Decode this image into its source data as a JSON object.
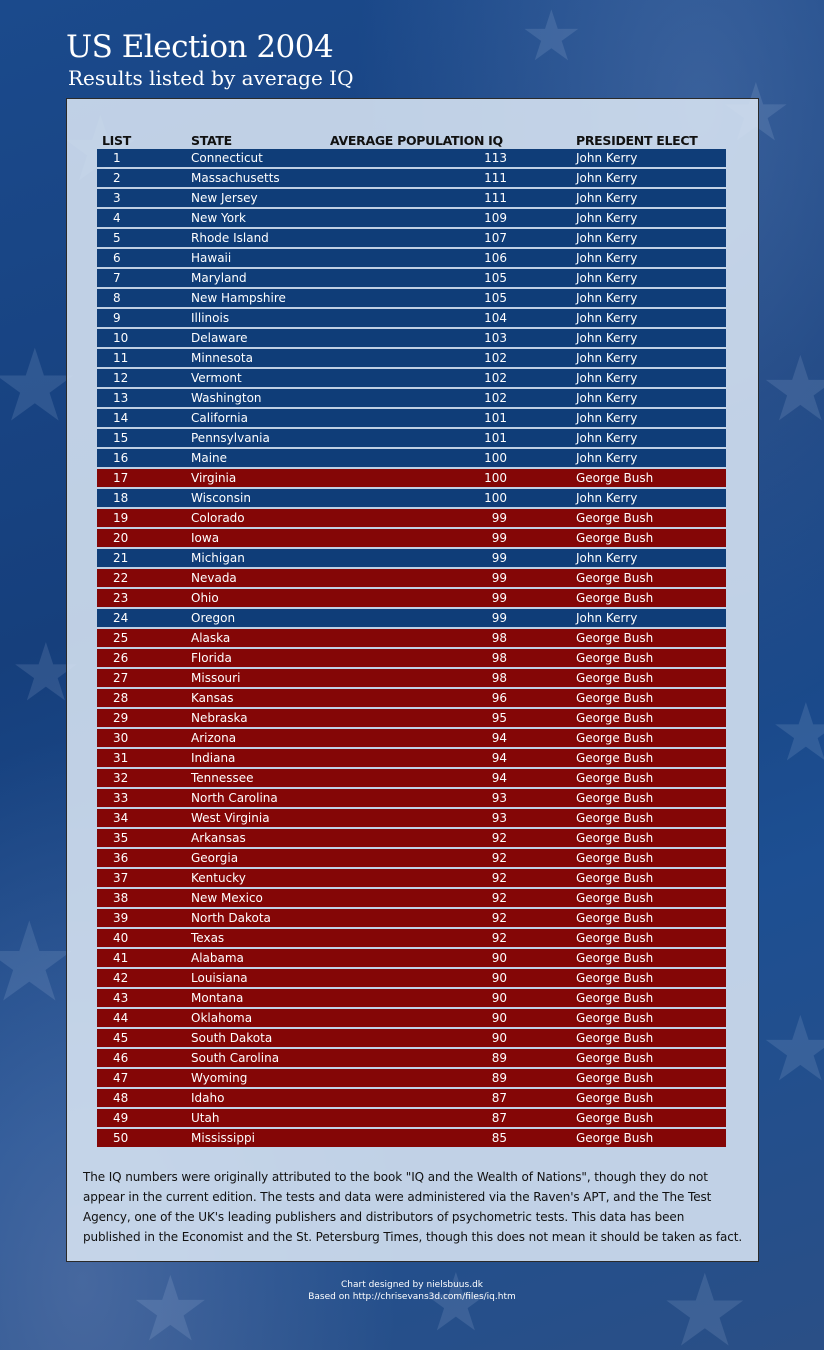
{
  "header": {
    "title": "US Election 2004",
    "subtitle": "Results listed by average IQ"
  },
  "colors": {
    "kerry": "#0f3d78",
    "bush": "#840606",
    "panel": "#d7e4f2",
    "background": "#1b4a8c"
  },
  "chart_data": {
    "type": "table",
    "columns": [
      "LIST",
      "STATE",
      "AVERAGE POPULATION IQ",
      "PRESIDENT ELECT"
    ],
    "rows": [
      {
        "rank": "1",
        "state": "Connecticut",
        "iq": 113,
        "president": "John Kerry"
      },
      {
        "rank": "2",
        "state": "Massachusetts",
        "iq": 111,
        "president": "John Kerry"
      },
      {
        "rank": "3",
        "state": "New Jersey",
        "iq": 111,
        "president": "John Kerry"
      },
      {
        "rank": "4",
        "state": "New York",
        "iq": 109,
        "president": "John Kerry"
      },
      {
        "rank": "5",
        "state": "Rhode Island",
        "iq": 107,
        "president": "John Kerry"
      },
      {
        "rank": "6",
        "state": "Hawaii",
        "iq": 106,
        "president": "John Kerry"
      },
      {
        "rank": "7",
        "state": "Maryland",
        "iq": 105,
        "president": "John Kerry"
      },
      {
        "rank": "8",
        "state": "New Hampshire",
        "iq": 105,
        "president": "John Kerry"
      },
      {
        "rank": "9",
        "state": "Illinois",
        "iq": 104,
        "president": "John Kerry"
      },
      {
        "rank": "10",
        "state": "Delaware",
        "iq": 103,
        "president": "John Kerry"
      },
      {
        "rank": "11",
        "state": "Minnesota",
        "iq": 102,
        "president": "John Kerry"
      },
      {
        "rank": "12",
        "state": "Vermont",
        "iq": 102,
        "president": "John Kerry"
      },
      {
        "rank": "13",
        "state": "Washington",
        "iq": 102,
        "president": "John Kerry"
      },
      {
        "rank": "14",
        "state": "California",
        "iq": 101,
        "president": "John Kerry"
      },
      {
        "rank": "15",
        "state": "Pennsylvania",
        "iq": 101,
        "president": "John Kerry"
      },
      {
        "rank": "16",
        "state": "Maine",
        "iq": 100,
        "president": "John Kerry"
      },
      {
        "rank": "17",
        "state": "Virginia",
        "iq": 100,
        "president": "George Bush"
      },
      {
        "rank": "18",
        "state": "Wisconsin",
        "iq": 100,
        "president": "John Kerry"
      },
      {
        "rank": "19",
        "state": "Colorado",
        "iq": 99,
        "president": "George Bush"
      },
      {
        "rank": "20",
        "state": "Iowa",
        "iq": 99,
        "president": "George Bush"
      },
      {
        "rank": "21",
        "state": "Michigan",
        "iq": 99,
        "president": "John Kerry"
      },
      {
        "rank": "22",
        "state": "Nevada",
        "iq": 99,
        "president": "George Bush"
      },
      {
        "rank": "23",
        "state": "Ohio",
        "iq": 99,
        "president": "George Bush"
      },
      {
        "rank": "24",
        "state": "Oregon",
        "iq": 99,
        "president": "John Kerry"
      },
      {
        "rank": "25",
        "state": "Alaska",
        "iq": 98,
        "president": "George Bush"
      },
      {
        "rank": "26",
        "state": "Florida",
        "iq": 98,
        "president": "George Bush"
      },
      {
        "rank": "27",
        "state": "Missouri",
        "iq": 98,
        "president": "George Bush"
      },
      {
        "rank": "28",
        "state": "Kansas",
        "iq": 96,
        "president": "George Bush"
      },
      {
        "rank": "29",
        "state": "Nebraska",
        "iq": 95,
        "president": "George Bush"
      },
      {
        "rank": "30",
        "state": "Arizona",
        "iq": 94,
        "president": "George Bush"
      },
      {
        "rank": "31",
        "state": "Indiana",
        "iq": 94,
        "president": "George Bush"
      },
      {
        "rank": "32",
        "state": "Tennessee",
        "iq": 94,
        "president": "George Bush"
      },
      {
        "rank": "33",
        "state": "North Carolina",
        "iq": 93,
        "president": "George Bush"
      },
      {
        "rank": "34",
        "state": "West Virginia",
        "iq": 93,
        "president": "George Bush"
      },
      {
        "rank": "35",
        "state": "Arkansas",
        "iq": 92,
        "president": "George Bush"
      },
      {
        "rank": "36",
        "state": "Georgia",
        "iq": 92,
        "president": "George Bush"
      },
      {
        "rank": "37",
        "state": "Kentucky",
        "iq": 92,
        "president": "George Bush"
      },
      {
        "rank": "38",
        "state": "New Mexico",
        "iq": 92,
        "president": "George Bush"
      },
      {
        "rank": "39",
        "state": "North Dakota",
        "iq": 92,
        "president": "George Bush"
      },
      {
        "rank": "40",
        "state": "Texas",
        "iq": 92,
        "president": "George Bush"
      },
      {
        "rank": "41",
        "state": "Alabama",
        "iq": 90,
        "president": "George Bush"
      },
      {
        "rank": "42",
        "state": "Louisiana",
        "iq": 90,
        "president": "George Bush"
      },
      {
        "rank": "43",
        "state": "Montana",
        "iq": 90,
        "president": "George Bush"
      },
      {
        "rank": "44",
        "state": "Oklahoma",
        "iq": 90,
        "president": "George Bush"
      },
      {
        "rank": "45",
        "state": "South Dakota",
        "iq": 90,
        "president": "George Bush"
      },
      {
        "rank": "46",
        "state": "South Carolina",
        "iq": 89,
        "president": "George Bush"
      },
      {
        "rank": "47",
        "state": "Wyoming",
        "iq": 89,
        "president": "George Bush"
      },
      {
        "rank": "48",
        "state": "Idaho",
        "iq": 87,
        "president": "George Bush"
      },
      {
        "rank": "49",
        "state": "Utah",
        "iq": 87,
        "president": "George Bush"
      },
      {
        "rank": "50",
        "state": "Mississippi",
        "iq": 85,
        "president": "George Bush"
      }
    ]
  },
  "footnote": "The IQ numbers were originally attributed to the book \"IQ and the Wealth of Nations\", though they do not appear in the current edition. The tests and data were administered via the Raven's APT, and the The Test Agency, one of the UK's leading publishers and distributors of psychometric tests. This data has been published in the Economist and the St. Petersburg Times, though this does not mean it should be taken as fact.",
  "credits": {
    "designer": "Chart designed by nielsbuus.dk",
    "source": "Based on http://chrisevans3d.com/files/iq.htm"
  }
}
